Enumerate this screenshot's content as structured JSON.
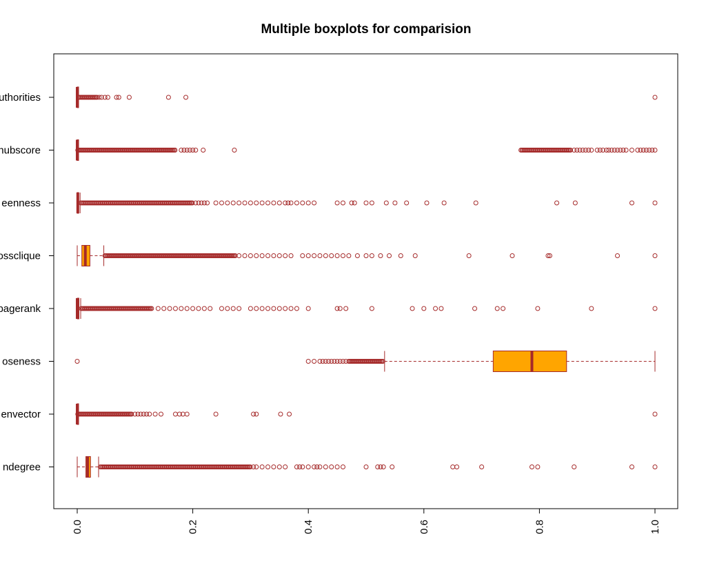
{
  "chart_data": {
    "type": "boxplot",
    "orientation": "horizontal",
    "title": "Multiple boxplots for comparision",
    "xlabel": "",
    "ylabel": "",
    "xlim": [
      0,
      1
    ],
    "x_ticks": [
      "0.0",
      "0.2",
      "0.4",
      "0.6",
      "0.8",
      "1.0"
    ],
    "grid": false,
    "legend": "none",
    "colors": {
      "box_fill": "#FFA500",
      "box_border": "#A52A2A",
      "outlier": "#A52A2A",
      "background": "#FFFFFF"
    },
    "series": [
      {
        "name": "authorities",
        "label_visible": "uthorities",
        "box": {
          "min": 0.0,
          "q1": 0.0,
          "median": 0.0,
          "q3": 0.001,
          "max": 0.002
        },
        "outlier_bands": [
          [
            0.002,
            0.035
          ]
        ],
        "outliers": [
          0.038,
          0.042,
          0.048,
          0.053,
          0.068,
          0.072,
          0.09,
          0.158,
          0.188,
          1.0
        ]
      },
      {
        "name": "hubscore",
        "label_visible": "hubscore",
        "box": {
          "min": 0.0,
          "q1": 0.0,
          "median": 0.0,
          "q3": 0.0,
          "max": 0.0
        },
        "outlier_bands": [
          [
            0.001,
            0.17
          ],
          [
            0.768,
            0.855
          ]
        ],
        "outliers": [
          0.18,
          0.185,
          0.19,
          0.195,
          0.2,
          0.205,
          0.218,
          0.272,
          0.86,
          0.865,
          0.87,
          0.875,
          0.88,
          0.885,
          0.89,
          0.9,
          0.905,
          0.91,
          0.916,
          0.92,
          0.925,
          0.93,
          0.935,
          0.94,
          0.945,
          0.95,
          0.96,
          0.97,
          0.975,
          0.98,
          0.985,
          0.99,
          0.995,
          1.0
        ]
      },
      {
        "name": "betweenness",
        "label_visible": "eenness",
        "box": {
          "min": 0.0,
          "q1": 0.0,
          "median": 0.001,
          "q3": 0.002,
          "max": 0.005
        },
        "outlier_bands": [
          [
            0.006,
            0.2
          ]
        ],
        "outliers": [
          0.205,
          0.21,
          0.215,
          0.22,
          0.225,
          0.24,
          0.25,
          0.26,
          0.27,
          0.28,
          0.29,
          0.3,
          0.31,
          0.32,
          0.33,
          0.34,
          0.35,
          0.36,
          0.365,
          0.37,
          0.38,
          0.39,
          0.4,
          0.41,
          0.45,
          0.46,
          0.475,
          0.48,
          0.5,
          0.51,
          0.535,
          0.55,
          0.57,
          0.605,
          0.635,
          0.69,
          0.83,
          0.862,
          0.96,
          1.0
        ]
      },
      {
        "name": "crossclique",
        "label_visible": "ossclique",
        "box": {
          "min": 0.0,
          "q1": 0.008,
          "median": 0.014,
          "q3": 0.022,
          "max": 0.046
        },
        "outlier_bands": [
          [
            0.048,
            0.275
          ]
        ],
        "outliers": [
          0.28,
          0.29,
          0.3,
          0.31,
          0.32,
          0.33,
          0.34,
          0.35,
          0.36,
          0.37,
          0.39,
          0.4,
          0.41,
          0.42,
          0.43,
          0.44,
          0.45,
          0.46,
          0.47,
          0.485,
          0.5,
          0.51,
          0.525,
          0.54,
          0.56,
          0.585,
          0.678,
          0.753,
          0.815,
          0.818,
          0.935,
          1.0
        ]
      },
      {
        "name": "pagerank",
        "label_visible": "pagerank",
        "box": {
          "min": 0.0,
          "q1": 0.0,
          "median": 0.0,
          "q3": 0.003,
          "max": 0.006
        },
        "outlier_bands": [
          [
            0.007,
            0.13
          ]
        ],
        "outliers": [
          0.14,
          0.15,
          0.16,
          0.17,
          0.18,
          0.19,
          0.2,
          0.21,
          0.22,
          0.23,
          0.25,
          0.26,
          0.27,
          0.28,
          0.3,
          0.31,
          0.32,
          0.33,
          0.34,
          0.35,
          0.36,
          0.37,
          0.38,
          0.4,
          0.45,
          0.455,
          0.465,
          0.51,
          0.58,
          0.6,
          0.62,
          0.63,
          0.688,
          0.727,
          0.737,
          0.797,
          0.89,
          1.0
        ]
      },
      {
        "name": "closeness",
        "label_visible": "oseness",
        "box": {
          "min": 0.532,
          "q1": 0.72,
          "median": 0.787,
          "q3": 0.847,
          "max": 1.0
        },
        "outlier_bands": [
          [
            0.47,
            0.53
          ]
        ],
        "outliers": [
          0.0,
          0.4,
          0.41,
          0.42,
          0.425,
          0.43,
          0.435,
          0.44,
          0.445,
          0.45,
          0.455,
          0.46,
          0.465
        ]
      },
      {
        "name": "eigenvector",
        "label_visible": "envector",
        "box": {
          "min": 0.0,
          "q1": 0.0,
          "median": 0.0,
          "q3": 0.0,
          "max": 0.001
        },
        "outlier_bands": [
          [
            0.001,
            0.095
          ]
        ],
        "outliers": [
          0.1,
          0.105,
          0.11,
          0.115,
          0.12,
          0.125,
          0.135,
          0.145,
          0.17,
          0.177,
          0.183,
          0.19,
          0.24,
          0.305,
          0.31,
          0.352,
          0.367,
          1.0
        ]
      },
      {
        "name": "indegree",
        "label_visible": "ndegree",
        "box": {
          "min": 0.0,
          "q1": 0.015,
          "median": 0.018,
          "q3": 0.023,
          "max": 0.037
        },
        "outlier_bands": [
          [
            0.04,
            0.3
          ]
        ],
        "outliers": [
          0.305,
          0.31,
          0.32,
          0.33,
          0.34,
          0.35,
          0.36,
          0.38,
          0.385,
          0.39,
          0.4,
          0.41,
          0.415,
          0.42,
          0.43,
          0.44,
          0.45,
          0.46,
          0.5,
          0.52,
          0.525,
          0.53,
          0.545,
          0.65,
          0.657,
          0.7,
          0.787,
          0.797,
          0.86,
          0.96,
          1.0
        ]
      }
    ]
  }
}
